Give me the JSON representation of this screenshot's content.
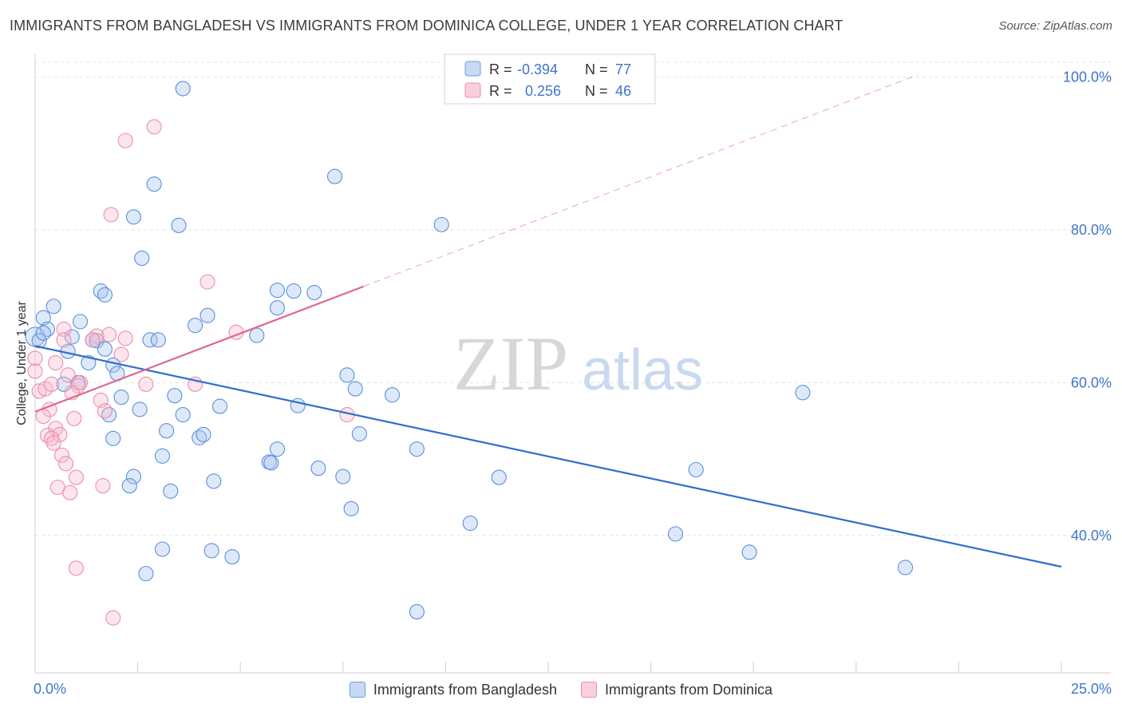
{
  "title": "IMMIGRANTS FROM BANGLADESH VS IMMIGRANTS FROM DOMINICA COLLEGE, UNDER 1 YEAR CORRELATION CHART",
  "source": "Source: ZipAtlas.com",
  "watermark": {
    "zip": "ZIP",
    "atlas": "atlas"
  },
  "legend_top": [
    {
      "r_label": "R =",
      "r_value": "-0.394",
      "n_label": "N =",
      "n_value": "77"
    },
    {
      "r_label": "R =",
      "r_value": "0.256",
      "n_label": "N =",
      "n_value": "46"
    }
  ],
  "chart_data": {
    "type": "scatter",
    "ylabel": "College, Under 1 year",
    "xlim": [
      0,
      25
    ],
    "ylim": [
      22,
      103
    ],
    "x_tick_labels": [
      "0.0%",
      "25.0%"
    ],
    "y_ticks": [
      40,
      60,
      80,
      100
    ],
    "y_tick_labels": [
      "40.0%",
      "60.0%",
      "80.0%",
      "100.0%"
    ],
    "colors": {
      "bangladesh": "#5b8fdb",
      "dominica": "#ea8fae",
      "blue_line": "#2e6fcc",
      "pink_line": "#e0668f",
      "tick_text": "#3f76c9"
    },
    "series": [
      {
        "name": "Immigrants from Bangladesh",
        "color": "#5b8fdb",
        "points": [
          [
            3.6,
            98.5
          ],
          [
            2.9,
            86
          ],
          [
            2.4,
            81.7
          ],
          [
            3.5,
            80.6
          ],
          [
            7.3,
            87
          ],
          [
            9.9,
            80.7
          ],
          [
            2.6,
            76.3
          ],
          [
            1.6,
            72
          ],
          [
            1.7,
            71.5
          ],
          [
            5.9,
            72.1
          ],
          [
            6.3,
            72
          ],
          [
            6.8,
            71.8
          ],
          [
            5.9,
            69.8
          ],
          [
            0.45,
            70
          ],
          [
            0.2,
            68.5
          ],
          [
            0.3,
            67
          ],
          [
            1.1,
            68
          ],
          [
            4.2,
            68.8
          ],
          [
            3.9,
            67.5
          ],
          [
            5.4,
            66.2
          ],
          [
            0.0,
            66
          ],
          [
            0.1,
            65.5
          ],
          [
            0.2,
            66.5
          ],
          [
            0.9,
            66
          ],
          [
            1.4,
            65.6
          ],
          [
            1.5,
            65.5
          ],
          [
            2.8,
            65.6
          ],
          [
            3.0,
            65.6
          ],
          [
            1.7,
            64.4
          ],
          [
            0.8,
            64.1
          ],
          [
            1.3,
            62.6
          ],
          [
            1.9,
            62.3
          ],
          [
            2.0,
            61.2
          ],
          [
            7.6,
            61
          ],
          [
            0.7,
            59.8
          ],
          [
            1.05,
            60
          ],
          [
            7.8,
            59.2
          ],
          [
            8.7,
            58.4
          ],
          [
            2.1,
            58.1
          ],
          [
            3.4,
            58.3
          ],
          [
            4.5,
            56.9
          ],
          [
            6.4,
            57
          ],
          [
            18.7,
            58.7
          ],
          [
            2.55,
            56.5
          ],
          [
            1.8,
            55.8
          ],
          [
            3.6,
            55.8
          ],
          [
            3.2,
            53.7
          ],
          [
            7.9,
            53.3
          ],
          [
            1.9,
            52.7
          ],
          [
            4.0,
            52.8
          ],
          [
            4.1,
            53.2
          ],
          [
            5.9,
            51.3
          ],
          [
            9.3,
            51.3
          ],
          [
            3.1,
            50.4
          ],
          [
            5.7,
            49.6
          ],
          [
            5.75,
            49.5
          ],
          [
            6.9,
            48.8
          ],
          [
            16.1,
            48.6
          ],
          [
            2.4,
            47.7
          ],
          [
            4.35,
            47.1
          ],
          [
            7.5,
            47.7
          ],
          [
            11.3,
            47.6
          ],
          [
            2.3,
            46.5
          ],
          [
            3.3,
            45.8
          ],
          [
            7.7,
            43.5
          ],
          [
            10.6,
            41.6
          ],
          [
            15.6,
            40.2
          ],
          [
            3.1,
            38.2
          ],
          [
            4.3,
            38.0
          ],
          [
            4.8,
            37.2
          ],
          [
            17.4,
            37.8
          ],
          [
            2.7,
            35
          ],
          [
            21.2,
            35.8
          ],
          [
            9.3,
            30.0
          ]
        ]
      },
      {
        "name": "Immigrants from Dominica",
        "color": "#ea8fae",
        "points": [
          [
            2.9,
            93.5
          ],
          [
            2.2,
            91.7
          ],
          [
            1.85,
            82
          ],
          [
            4.2,
            73.2
          ],
          [
            0.7,
            67
          ],
          [
            1.8,
            66.3
          ],
          [
            1.5,
            66.1
          ],
          [
            1.4,
            65.6
          ],
          [
            2.2,
            65.8
          ],
          [
            0.7,
            65.6
          ],
          [
            4.9,
            66.6
          ],
          [
            0.0,
            63.2
          ],
          [
            0.5,
            62.6
          ],
          [
            2.1,
            63.7
          ],
          [
            0.8,
            61
          ],
          [
            0.0,
            61.5
          ],
          [
            0.1,
            58.9
          ],
          [
            0.25,
            59.2
          ],
          [
            0.4,
            59.8
          ],
          [
            1.1,
            60
          ],
          [
            1.05,
            59.6
          ],
          [
            2.7,
            59.8
          ],
          [
            3.9,
            59.8
          ],
          [
            0.9,
            58.7
          ],
          [
            1.6,
            57.7
          ],
          [
            0.35,
            56.5
          ],
          [
            1.7,
            56.3
          ],
          [
            7.6,
            55.8
          ],
          [
            0.2,
            55.6
          ],
          [
            0.95,
            55.3
          ],
          [
            0.5,
            54
          ],
          [
            0.3,
            53.1
          ],
          [
            0.6,
            53.2
          ],
          [
            0.4,
            52.7
          ],
          [
            0.45,
            52.1
          ],
          [
            0.65,
            50.5
          ],
          [
            0.75,
            49.4
          ],
          [
            1.0,
            47.6
          ],
          [
            0.55,
            46.3
          ],
          [
            0.85,
            45.6
          ],
          [
            1.65,
            46.5
          ],
          [
            1.0,
            35.7
          ],
          [
            1.9,
            29.2
          ]
        ]
      }
    ],
    "trend_lines": [
      {
        "series": "Immigrants from Bangladesh",
        "x": [
          0,
          25
        ],
        "y": [
          64.8,
          35.9
        ]
      },
      {
        "series": "Immigrants from Dominica",
        "x": [
          0,
          8
        ],
        "y": [
          56.2,
          72.6
        ]
      },
      {
        "series": "Immigrants from Dominica",
        "style": "dashed",
        "x": [
          8,
          21.5
        ],
        "y": [
          72.6,
          100.3
        ]
      }
    ]
  },
  "legend_bottom": [
    {
      "label": "Immigrants from Bangladesh"
    },
    {
      "label": "Immigrants from Dominica"
    }
  ]
}
